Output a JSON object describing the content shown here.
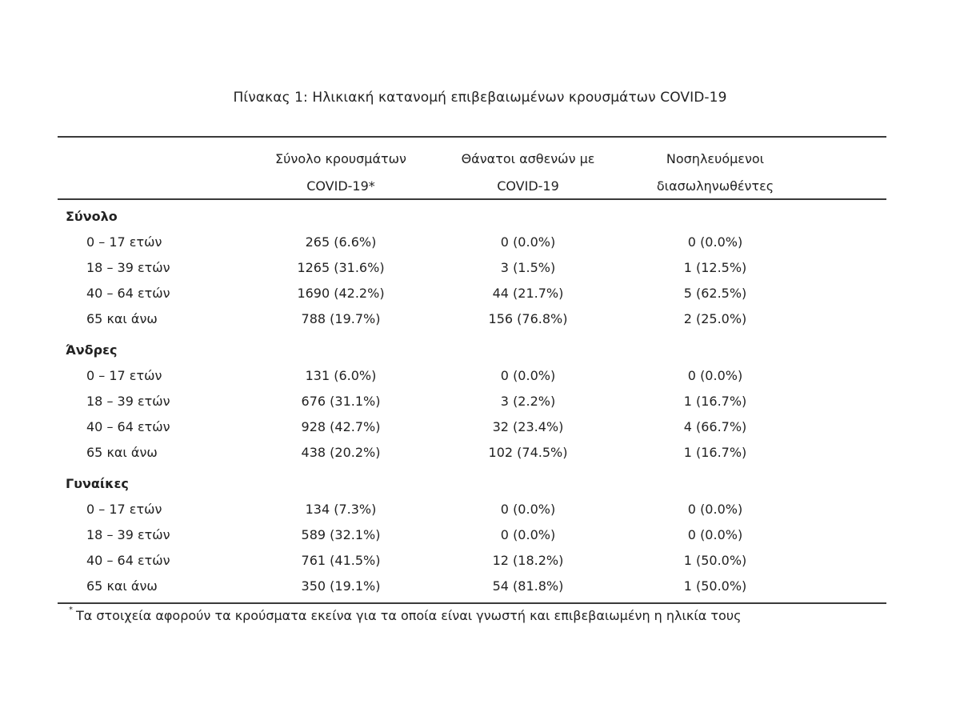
{
  "caption": "Πίνακας 1: Ηλικιακή κατανομή επιβεβαιωμένων κρουσμάτων COVID-19",
  "columns": [
    {
      "line1": "Σύνολο κρουσμάτων",
      "line2": "COVID-19*"
    },
    {
      "line1": "Θάνατοι ασθενών με",
      "line2": "COVID-19"
    },
    {
      "line1": "Νοσηλευόμενοι",
      "line2": "διασωληνωθέντες"
    }
  ],
  "sections": [
    {
      "title": "Σύνολο",
      "rows": [
        {
          "label": "0 – 17 ετών",
          "values": [
            "265 (6.6%)",
            "0 (0.0%)",
            "0 (0.0%)"
          ]
        },
        {
          "label": "18 – 39 ετών",
          "values": [
            "1265 (31.6%)",
            "3 (1.5%)",
            "1 (12.5%)"
          ]
        },
        {
          "label": "40 – 64 ετών",
          "values": [
            "1690 (42.2%)",
            "44 (21.7%)",
            "5 (62.5%)"
          ]
        },
        {
          "label": "65 και άνω",
          "values": [
            "788 (19.7%)",
            "156 (76.8%)",
            "2 (25.0%)"
          ]
        }
      ]
    },
    {
      "title": "Άνδρες",
      "rows": [
        {
          "label": "0 – 17 ετών",
          "values": [
            "131 (6.0%)",
            "0 (0.0%)",
            "0 (0.0%)"
          ]
        },
        {
          "label": "18 – 39 ετών",
          "values": [
            "676 (31.1%)",
            "3 (2.2%)",
            "1 (16.7%)"
          ]
        },
        {
          "label": "40 – 64 ετών",
          "values": [
            "928 (42.7%)",
            "32 (23.4%)",
            "4 (66.7%)"
          ]
        },
        {
          "label": "65 και άνω",
          "values": [
            "438 (20.2%)",
            "102 (74.5%)",
            "1 (16.7%)"
          ]
        }
      ]
    },
    {
      "title": "Γυναίκες",
      "rows": [
        {
          "label": "0 – 17 ετών",
          "values": [
            "134 (7.3%)",
            "0 (0.0%)",
            "0 (0.0%)"
          ]
        },
        {
          "label": "18 – 39 ετών",
          "values": [
            "589 (32.1%)",
            "0 (0.0%)",
            "0 (0.0%)"
          ]
        },
        {
          "label": "40 – 64 ετών",
          "values": [
            "761 (41.5%)",
            "12 (18.2%)",
            "1 (50.0%)"
          ]
        },
        {
          "label": "65 και άνω",
          "values": [
            "350 (19.1%)",
            "54 (81.8%)",
            "1 (50.0%)"
          ]
        }
      ]
    }
  ],
  "footnote": {
    "mark": "*",
    "text": "Τα στοιχεία αφορούν τα κρούσματα εκείνα για τα οποία είναι γνωστή και επιβεβαιωμένη η ηλικία τους"
  }
}
